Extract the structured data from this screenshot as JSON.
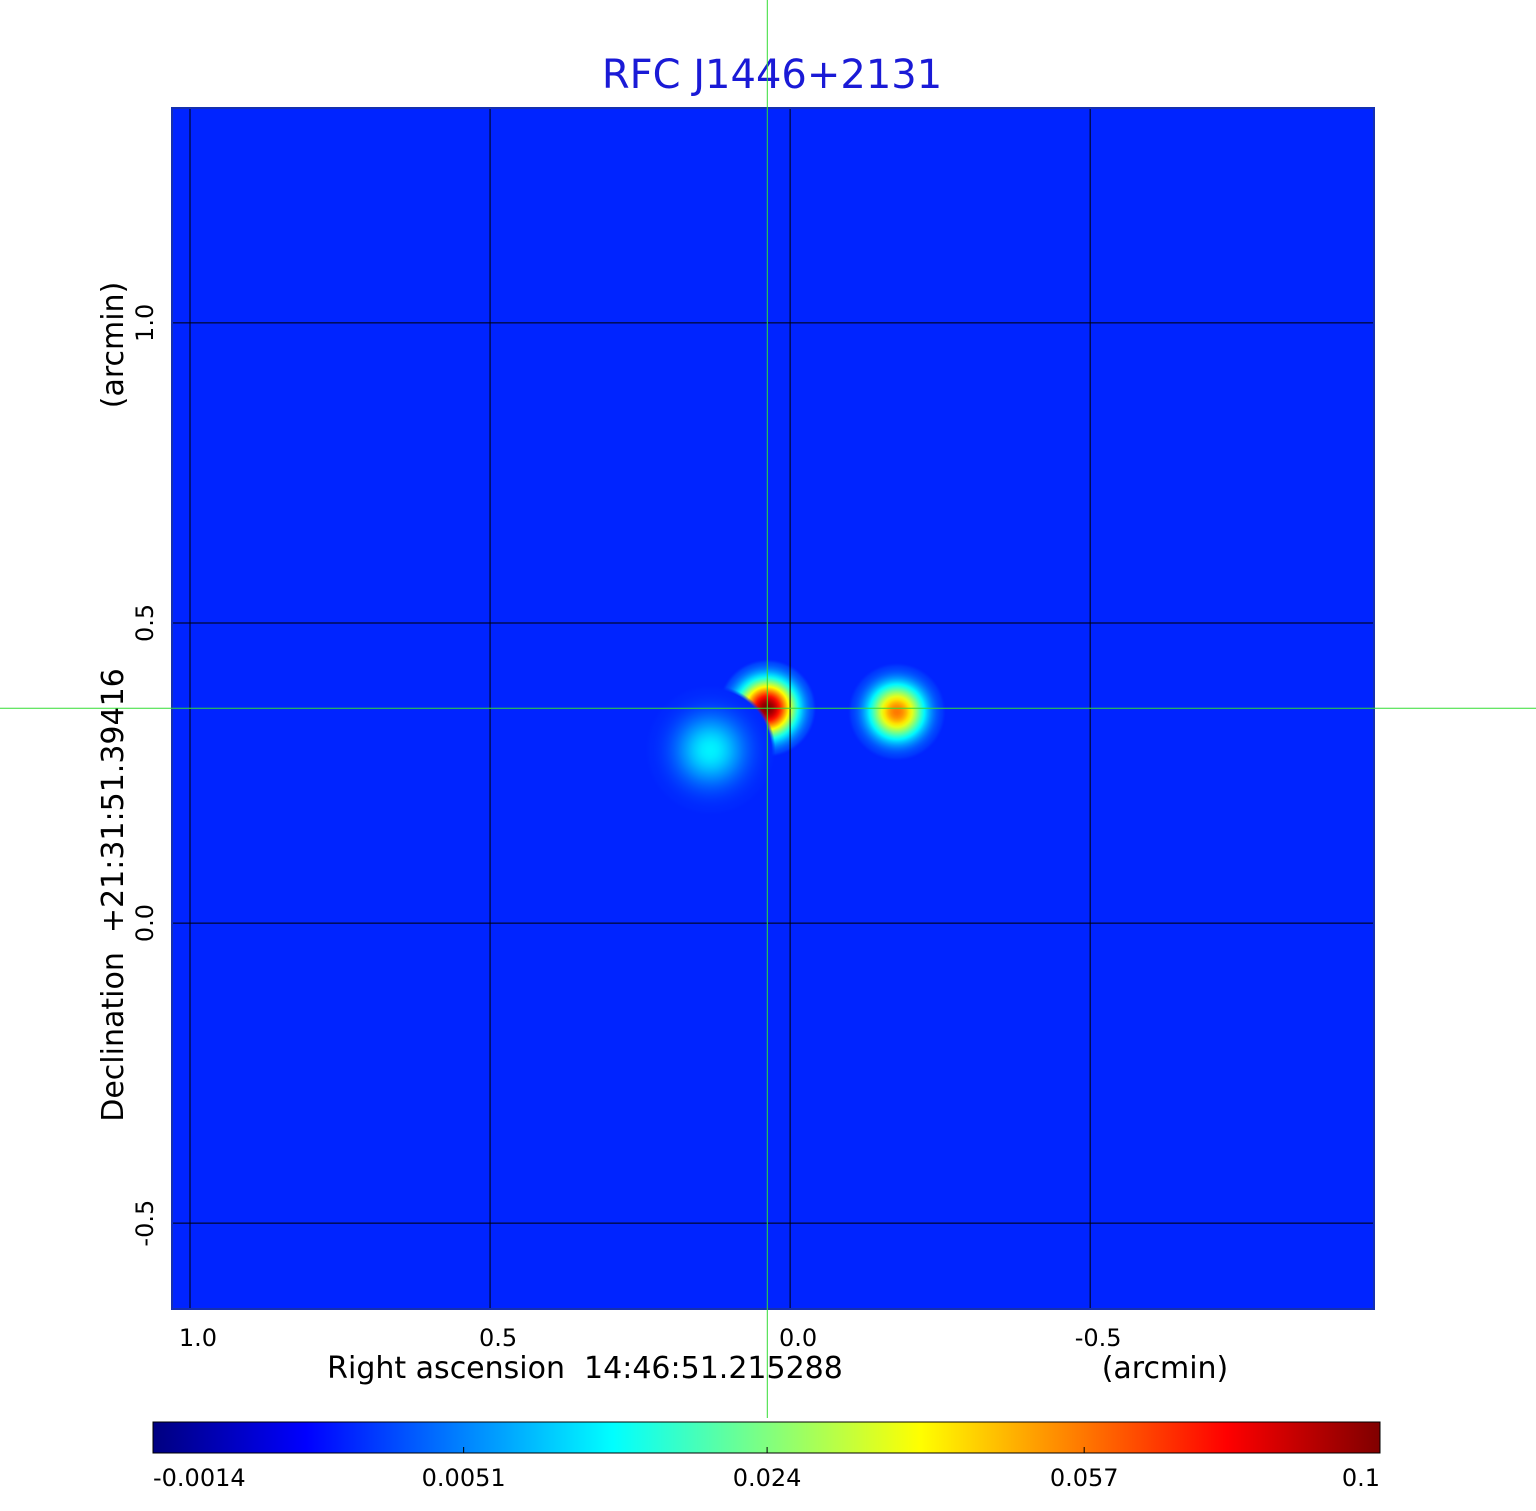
{
  "chart_data": {
    "type": "image",
    "title": "RFC J1446+2131",
    "x_label": "Right ascension  14:46:51.215288",
    "x_unit": "(arcmin)",
    "y_label": "Declination  +21:31:51.39416",
    "y_unit": "(arcmin)",
    "xlim": [
      1.03,
      -0.973
    ],
    "ylim": [
      -0.643,
      1.358
    ],
    "xticks": [
      {
        "value": 1,
        "label": "1.0"
      },
      0.5,
      {
        "value": 0,
        "label": "0.0"
      },
      -0.5
    ],
    "yticks": [
      -0.5,
      {
        "value": 0,
        "label": "0.0"
      },
      0.5,
      {
        "value": 1,
        "label": "1.0"
      }
    ],
    "grid": true,
    "background": 0.0012,
    "sources": [
      {
        "x": 0.038,
        "y": 0.358,
        "peak": 0.1,
        "fwhm": 0.06
      },
      {
        "x": -0.178,
        "y": 0.352,
        "peak": 0.057,
        "fwhm": 0.06
      },
      {
        "x": 0.133,
        "y": 0.288,
        "peak": 0.012,
        "fwhm": 0.08
      }
    ],
    "crosshair": {
      "x": 0.038,
      "y": 0.358,
      "color": "#33dd33"
    },
    "colorbar": {
      "lim": [
        -0.0014,
        0.1
      ],
      "ticks": [
        -0.0014,
        0.0051,
        0.024,
        0.057,
        0.1
      ],
      "scale": "sqrt"
    }
  }
}
